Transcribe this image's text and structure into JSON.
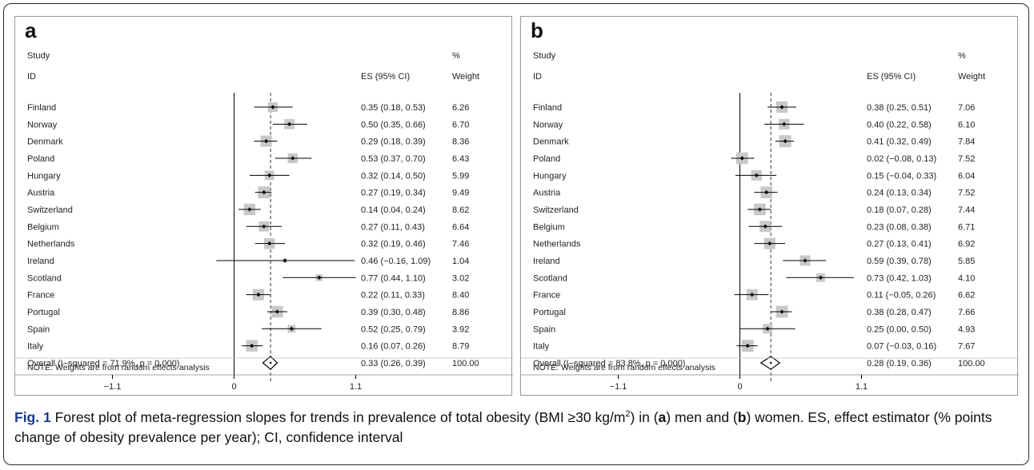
{
  "figure": {
    "caption_label": "Fig. 1",
    "caption_parts": [
      {
        "text": " Forest plot of meta-regression slopes for trends in prevalence of total obesity (BMI ≥30 kg/m",
        "bold": false
      },
      {
        "text": "2",
        "sup": true
      },
      {
        "text": ") in (",
        "bold": false
      },
      {
        "text": "a",
        "bold": true
      },
      {
        "text": ") men and (",
        "bold": false
      },
      {
        "text": "b",
        "bold": true
      },
      {
        "text": ") women. ES, effect estimator (% points change of obesity prevalence per year); CI, confidence interval",
        "bold": false
      }
    ]
  },
  "chart_data": [
    {
      "type": "forest",
      "panel_label": "a",
      "header": {
        "study": "Study",
        "id": "ID",
        "es": "ES (95% CI)",
        "pct": "%",
        "weight": "Weight"
      },
      "xlim": [
        -1.1,
        1.1
      ],
      "xticks": [
        "−1.1",
        "0",
        "1.1"
      ],
      "xtick_values": [
        -1.1,
        0,
        1.1
      ],
      "note": "NOTE: Weights are from random effects analysis",
      "overall": {
        "label": "Overall  (I−squared = 71.9%, p = 0.000)",
        "es": 0.33,
        "lo": 0.26,
        "hi": 0.39,
        "es_text": "0.33 (0.26, 0.39)",
        "weight_text": "100.00"
      },
      "studies": [
        {
          "id": "Finland",
          "es": 0.35,
          "lo": 0.18,
          "hi": 0.53,
          "es_text": "0.35 (0.18, 0.53)",
          "weight": 6.26,
          "weight_text": "6.26"
        },
        {
          "id": "Norway",
          "es": 0.5,
          "lo": 0.35,
          "hi": 0.66,
          "es_text": "0.50 (0.35, 0.66)",
          "weight": 6.7,
          "weight_text": "6.70"
        },
        {
          "id": "Denmark",
          "es": 0.29,
          "lo": 0.18,
          "hi": 0.39,
          "es_text": "0.29 (0.18, 0.39)",
          "weight": 8.36,
          "weight_text": "8.36"
        },
        {
          "id": "Poland",
          "es": 0.53,
          "lo": 0.37,
          "hi": 0.7,
          "es_text": "0.53 (0.37, 0.70)",
          "weight": 6.43,
          "weight_text": "6.43"
        },
        {
          "id": "Hungary",
          "es": 0.32,
          "lo": 0.14,
          "hi": 0.5,
          "es_text": "0.32 (0.14, 0.50)",
          "weight": 5.99,
          "weight_text": "5.99"
        },
        {
          "id": "Austria",
          "es": 0.27,
          "lo": 0.19,
          "hi": 0.34,
          "es_text": "0.27 (0.19, 0.34)",
          "weight": 9.49,
          "weight_text": "9.49"
        },
        {
          "id": "Switzerland",
          "es": 0.14,
          "lo": 0.04,
          "hi": 0.24,
          "es_text": "0.14 (0.04, 0.24)",
          "weight": 8.62,
          "weight_text": "8.62"
        },
        {
          "id": "Belgium",
          "es": 0.27,
          "lo": 0.11,
          "hi": 0.43,
          "es_text": "0.27 (0.11, 0.43)",
          "weight": 6.64,
          "weight_text": "6.64"
        },
        {
          "id": "Netherlands",
          "es": 0.32,
          "lo": 0.19,
          "hi": 0.46,
          "es_text": "0.32 (0.19, 0.46)",
          "weight": 7.46,
          "weight_text": "7.46"
        },
        {
          "id": "Ireland",
          "es": 0.46,
          "lo": -0.16,
          "hi": 1.09,
          "es_text": "0.46 (−0.16, 1.09)",
          "weight": 1.04,
          "weight_text": "1.04"
        },
        {
          "id": "Scotland",
          "es": 0.77,
          "lo": 0.44,
          "hi": 1.1,
          "es_text": "0.77 (0.44, 1.10)",
          "weight": 3.02,
          "weight_text": "3.02"
        },
        {
          "id": "France",
          "es": 0.22,
          "lo": 0.11,
          "hi": 0.33,
          "es_text": "0.22 (0.11, 0.33)",
          "weight": 8.4,
          "weight_text": "8.40"
        },
        {
          "id": "Portugal",
          "es": 0.39,
          "lo": 0.3,
          "hi": 0.48,
          "es_text": "0.39 (0.30, 0.48)",
          "weight": 8.86,
          "weight_text": "8.86"
        },
        {
          "id": "Spain",
          "es": 0.52,
          "lo": 0.25,
          "hi": 0.79,
          "es_text": "0.52 (0.25, 0.79)",
          "weight": 3.92,
          "weight_text": "3.92"
        },
        {
          "id": "Italy",
          "es": 0.16,
          "lo": 0.07,
          "hi": 0.26,
          "es_text": "0.16 (0.07, 0.26)",
          "weight": 8.79,
          "weight_text": "8.79"
        }
      ]
    },
    {
      "type": "forest",
      "panel_label": "b",
      "header": {
        "study": "Study",
        "id": "ID",
        "es": "ES (95% CI)",
        "pct": "%",
        "weight": "Weight"
      },
      "xlim": [
        -1.1,
        1.1
      ],
      "xticks": [
        "−1.1",
        "0",
        "1.1"
      ],
      "xtick_values": [
        -1.1,
        0,
        1.1
      ],
      "note": "NOTE: Weights are from random effects analysis",
      "overall": {
        "label": "Overall  (I−squared = 83.8%, p = 0.000)",
        "es": 0.28,
        "lo": 0.19,
        "hi": 0.36,
        "es_text": "0.28 (0.19, 0.36)",
        "weight_text": "100.00"
      },
      "studies": [
        {
          "id": "Finland",
          "es": 0.38,
          "lo": 0.25,
          "hi": 0.51,
          "es_text": "0.38 (0.25, 0.51)",
          "weight": 7.06,
          "weight_text": "7.06"
        },
        {
          "id": "Norway",
          "es": 0.4,
          "lo": 0.22,
          "hi": 0.58,
          "es_text": "0.40 (0.22, 0.58)",
          "weight": 6.1,
          "weight_text": "6.10"
        },
        {
          "id": "Denmark",
          "es": 0.41,
          "lo": 0.32,
          "hi": 0.49,
          "es_text": "0.41 (0.32, 0.49)",
          "weight": 7.84,
          "weight_text": "7.84"
        },
        {
          "id": "Poland",
          "es": 0.02,
          "lo": -0.08,
          "hi": 0.13,
          "es_text": "0.02 (−0.08, 0.13)",
          "weight": 7.52,
          "weight_text": "7.52"
        },
        {
          "id": "Hungary",
          "es": 0.15,
          "lo": -0.04,
          "hi": 0.33,
          "es_text": "0.15 (−0.04, 0.33)",
          "weight": 6.04,
          "weight_text": "6.04"
        },
        {
          "id": "Austria",
          "es": 0.24,
          "lo": 0.13,
          "hi": 0.34,
          "es_text": "0.24 (0.13, 0.34)",
          "weight": 7.52,
          "weight_text": "7.52"
        },
        {
          "id": "Switzerland",
          "es": 0.18,
          "lo": 0.07,
          "hi": 0.28,
          "es_text": "0.18 (0.07, 0.28)",
          "weight": 7.44,
          "weight_text": "7.44"
        },
        {
          "id": "Belgium",
          "es": 0.23,
          "lo": 0.08,
          "hi": 0.38,
          "es_text": "0.23 (0.08, 0.38)",
          "weight": 6.71,
          "weight_text": "6.71"
        },
        {
          "id": "Netherlands",
          "es": 0.27,
          "lo": 0.13,
          "hi": 0.41,
          "es_text": "0.27 (0.13, 0.41)",
          "weight": 6.92,
          "weight_text": "6.92"
        },
        {
          "id": "Ireland",
          "es": 0.59,
          "lo": 0.39,
          "hi": 0.78,
          "es_text": "0.59 (0.39, 0.78)",
          "weight": 5.85,
          "weight_text": "5.85"
        },
        {
          "id": "Scotland",
          "es": 0.73,
          "lo": 0.42,
          "hi": 1.03,
          "es_text": "0.73 (0.42, 1.03)",
          "weight": 4.1,
          "weight_text": "4.10"
        },
        {
          "id": "France",
          "es": 0.11,
          "lo": -0.05,
          "hi": 0.26,
          "es_text": "0.11 (−0.05, 0.26)",
          "weight": 6.62,
          "weight_text": "6.62"
        },
        {
          "id": "Portugal",
          "es": 0.38,
          "lo": 0.28,
          "hi": 0.47,
          "es_text": "0.38 (0.28, 0.47)",
          "weight": 7.66,
          "weight_text": "7.66"
        },
        {
          "id": "Spain",
          "es": 0.25,
          "lo": 0.0,
          "hi": 0.5,
          "es_text": "0.25 (0.00, 0.50)",
          "weight": 4.93,
          "weight_text": "4.93"
        },
        {
          "id": "Italy",
          "es": 0.07,
          "lo": -0.03,
          "hi": 0.16,
          "es_text": "0.07 (−0.03, 0.16)",
          "weight": 7.67,
          "weight_text": "7.67"
        }
      ]
    }
  ]
}
